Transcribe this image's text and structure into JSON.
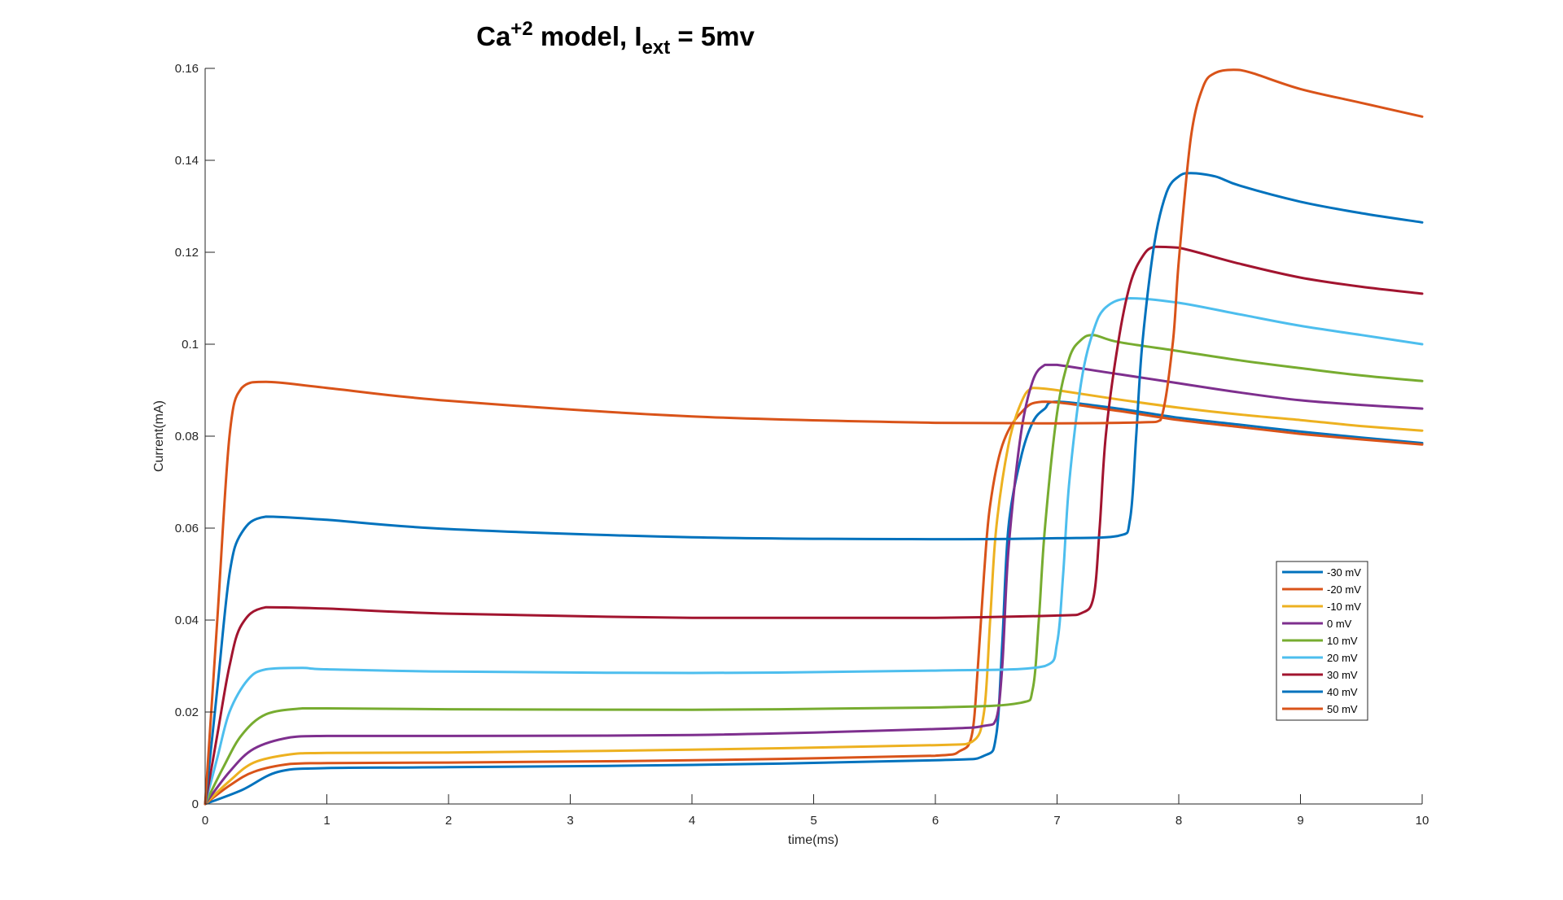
{
  "chart_data": {
    "type": "line",
    "title": {
      "main": "Ca",
      "superscript": "+2",
      "middle": " model, I",
      "subscript": "ext",
      "end": " = 5mv"
    },
    "xlabel": "time(ms)",
    "ylabel": "Current(mA)",
    "xlim": [
      0,
      10
    ],
    "ylim": [
      0,
      0.16
    ],
    "xticks": [
      "0",
      "1",
      "2",
      "3",
      "4",
      "5",
      "6",
      "7",
      "8",
      "9",
      "10"
    ],
    "yticks": [
      "0",
      "0.02",
      "0.04",
      "0.06",
      "0.08",
      "0.1",
      "0.12",
      "0.14",
      "0.16"
    ],
    "grid": false,
    "legend_position": "bottom-right",
    "series": [
      {
        "name": "-30 mV",
        "color": "#0072BD",
        "x": [
          0,
          0.3,
          0.6,
          1,
          2,
          4,
          6,
          6.4,
          6.5,
          6.55,
          6.6,
          6.7,
          6.8,
          6.9,
          7,
          7.5,
          8,
          8.5,
          9,
          9.5,
          10
        ],
        "y": [
          0,
          0.003,
          0.007,
          0.0078,
          0.008,
          0.0085,
          0.0095,
          0.0105,
          0.015,
          0.035,
          0.06,
          0.075,
          0.083,
          0.086,
          0.0875,
          0.086,
          0.084,
          0.0825,
          0.081,
          0.0797,
          0.0785
        ]
      },
      {
        "name": "-20 mV",
        "color": "#D95319",
        "x": [
          0,
          0.2,
          0.4,
          0.7,
          1,
          2,
          4,
          6,
          6.2,
          6.3,
          6.35,
          6.4,
          6.45,
          6.55,
          6.7,
          6.9,
          7.5,
          8,
          8.5,
          9,
          9.5,
          10
        ],
        "y": [
          0,
          0.004,
          0.007,
          0.0087,
          0.0089,
          0.009,
          0.0095,
          0.0105,
          0.0115,
          0.015,
          0.03,
          0.05,
          0.065,
          0.078,
          0.085,
          0.0875,
          0.0855,
          0.0835,
          0.082,
          0.0805,
          0.0793,
          0.0782
        ]
      },
      {
        "name": "-10 mV",
        "color": "#EDB120",
        "x": [
          0,
          0.2,
          0.4,
          0.7,
          1,
          2,
          4,
          6,
          6.3,
          6.4,
          6.45,
          6.5,
          6.6,
          6.7,
          6.8,
          7,
          7.5,
          8,
          8.5,
          9,
          9.5,
          10
        ],
        "y": [
          0,
          0.005,
          0.009,
          0.0108,
          0.0111,
          0.0112,
          0.0118,
          0.0128,
          0.0135,
          0.02,
          0.04,
          0.06,
          0.078,
          0.087,
          0.0905,
          0.09,
          0.088,
          0.0862,
          0.0847,
          0.0835,
          0.0822,
          0.0812
        ]
      },
      {
        "name": "0 mV",
        "color": "#7E2F8E",
        "x": [
          0,
          0.2,
          0.4,
          0.7,
          1,
          2,
          4,
          6,
          6.4,
          6.5,
          6.55,
          6.6,
          6.7,
          6.8,
          6.9,
          7,
          7.5,
          8,
          8.5,
          9,
          9.5,
          10
        ],
        "y": [
          0,
          0.007,
          0.012,
          0.0145,
          0.0148,
          0.0148,
          0.015,
          0.0163,
          0.017,
          0.0185,
          0.03,
          0.055,
          0.08,
          0.092,
          0.0955,
          0.0955,
          0.0935,
          0.0915,
          0.0895,
          0.0878,
          0.0868,
          0.086
        ]
      },
      {
        "name": "10 mV",
        "color": "#77AC30",
        "x": [
          0,
          0.15,
          0.3,
          0.5,
          0.8,
          1,
          2,
          4,
          6,
          6.7,
          6.8,
          6.85,
          6.9,
          7,
          7.1,
          7.2,
          7.3,
          7.5,
          8,
          8.5,
          9,
          9.5,
          10
        ],
        "y": [
          0,
          0.008,
          0.015,
          0.0195,
          0.0208,
          0.0208,
          0.0206,
          0.0205,
          0.021,
          0.022,
          0.025,
          0.04,
          0.06,
          0.085,
          0.097,
          0.101,
          0.102,
          0.1005,
          0.0985,
          0.0965,
          0.0948,
          0.0932,
          0.092
        ]
      },
      {
        "name": "20 mV",
        "color": "#4DBEEE",
        "x": [
          0,
          0.1,
          0.2,
          0.35,
          0.5,
          0.8,
          1,
          2,
          4,
          6,
          6.9,
          7,
          7.05,
          7.1,
          7.2,
          7.3,
          7.4,
          7.6,
          8,
          8.5,
          9,
          9.5,
          10
        ],
        "y": [
          0,
          0.01,
          0.02,
          0.027,
          0.0293,
          0.0296,
          0.0293,
          0.0288,
          0.0285,
          0.029,
          0.03,
          0.035,
          0.05,
          0.07,
          0.092,
          0.103,
          0.108,
          0.11,
          0.109,
          0.1065,
          0.104,
          0.102,
          0.1
        ]
      },
      {
        "name": "30 mV",
        "color": "#A2142F",
        "x": [
          0,
          0.1,
          0.2,
          0.3,
          0.5,
          1,
          2,
          4,
          6,
          7,
          7.2,
          7.3,
          7.35,
          7.4,
          7.5,
          7.6,
          7.7,
          7.8,
          8,
          8.5,
          9,
          9.5,
          10
        ],
        "y": [
          0,
          0.015,
          0.03,
          0.039,
          0.0428,
          0.0425,
          0.0414,
          0.0405,
          0.0405,
          0.041,
          0.0415,
          0.045,
          0.06,
          0.08,
          0.1,
          0.113,
          0.119,
          0.1212,
          0.121,
          0.1175,
          0.1145,
          0.1125,
          0.111
        ]
      },
      {
        "name": "40 mV",
        "color": "#0072BD",
        "x": [
          0,
          0.1,
          0.2,
          0.3,
          0.5,
          1,
          2,
          4,
          6,
          7,
          7.5,
          7.6,
          7.65,
          7.7,
          7.8,
          7.9,
          8,
          8.1,
          8.3,
          8.5,
          9,
          9.5,
          10
        ],
        "y": [
          0,
          0.025,
          0.05,
          0.059,
          0.0625,
          0.0618,
          0.0598,
          0.058,
          0.0576,
          0.0578,
          0.0583,
          0.062,
          0.08,
          0.1,
          0.122,
          0.133,
          0.1365,
          0.1372,
          0.1365,
          0.1345,
          0.131,
          0.1285,
          0.1265
        ]
      },
      {
        "name": "50 mV",
        "color": "#D95319",
        "x": [
          0,
          0.1,
          0.2,
          0.3,
          0.5,
          1,
          2,
          4,
          6,
          7,
          7.7,
          7.85,
          7.95,
          8,
          8.1,
          8.2,
          8.3,
          8.45,
          8.6,
          9,
          9.5,
          10
        ],
        "y": [
          0,
          0.04,
          0.08,
          0.0905,
          0.0918,
          0.0905,
          0.0877,
          0.0843,
          0.0829,
          0.0828,
          0.083,
          0.0835,
          0.1,
          0.118,
          0.145,
          0.156,
          0.159,
          0.1597,
          0.159,
          0.1555,
          0.1525,
          0.1495
        ]
      }
    ]
  }
}
